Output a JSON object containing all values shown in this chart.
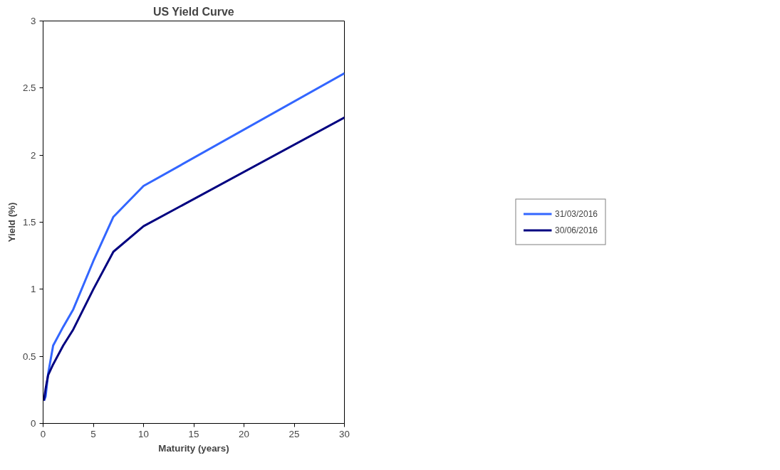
{
  "chart_data": {
    "type": "line",
    "title": "US Yield Curve",
    "xlabel": "Maturity (years)",
    "ylabel": "Yield (%)",
    "xlim": [
      0,
      30
    ],
    "xticks": [
      0,
      5,
      10,
      15,
      20,
      25,
      30
    ],
    "ylim": [
      0,
      3
    ],
    "yticks": [
      0,
      0.5,
      1,
      1.5,
      2,
      2.5,
      3
    ],
    "x": [
      0.083,
      0.25,
      0.5,
      1,
      2,
      3,
      5,
      7,
      10,
      30
    ],
    "series": [
      {
        "name": "31/03/2016",
        "color": "#3366ff",
        "values": [
          0.17,
          0.2,
          0.37,
          0.58,
          0.72,
          0.85,
          1.21,
          1.54,
          1.77,
          2.61
        ]
      },
      {
        "name": "30/06/2016",
        "color": "#000080",
        "values": [
          0.17,
          0.26,
          0.36,
          0.44,
          0.58,
          0.7,
          1.0,
          1.28,
          1.47,
          2.28
        ]
      }
    ],
    "grid": false,
    "legend": "right",
    "marker": "none",
    "line_style": "solid"
  }
}
